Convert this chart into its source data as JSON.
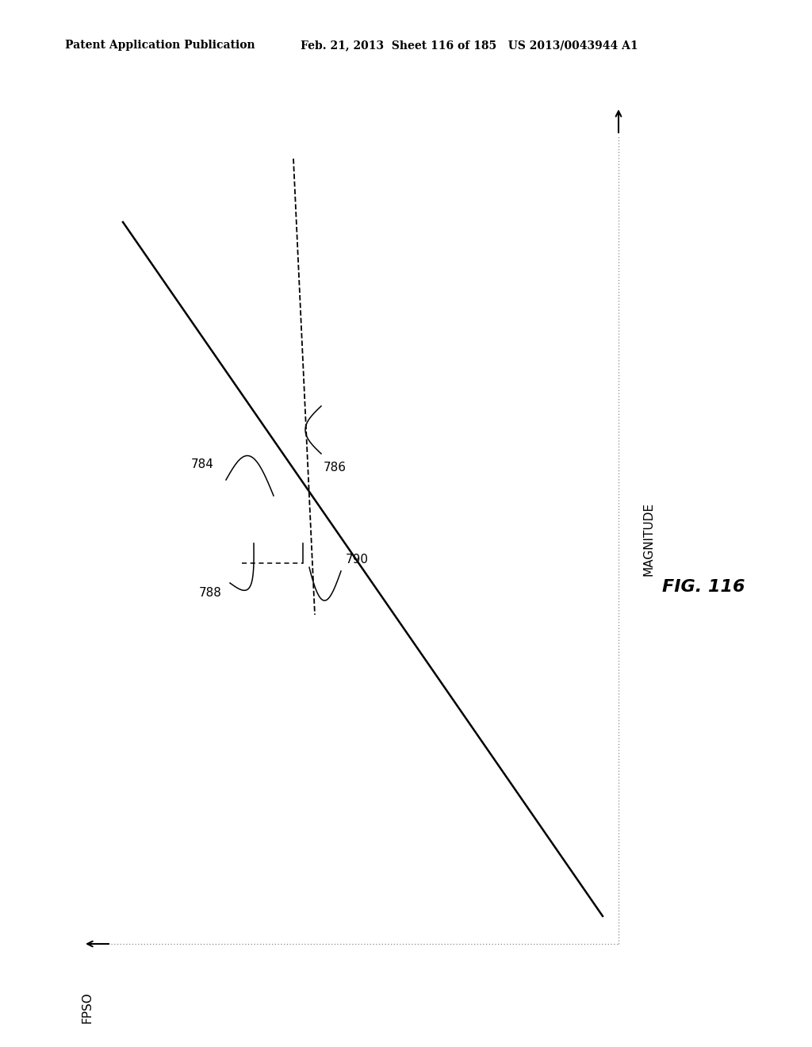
{
  "title_header_left": "Patent Application Publication",
  "title_header_right": "Feb. 21, 2013  Sheet 116 of 185   US 2013/0043944 A1",
  "fig_label": "FIG. 116",
  "x_axis_label": "FPSO",
  "y_axis_label": "MAGNITUDE",
  "label_784": "784",
  "label_786": "786",
  "label_788": "788",
  "label_790": "790",
  "bg_color": "#ffffff",
  "line_color": "#000000",
  "header_fontsize": 10,
  "fig_label_fontsize": 16,
  "axis_label_fontsize": 11,
  "annotation_fontsize": 11
}
